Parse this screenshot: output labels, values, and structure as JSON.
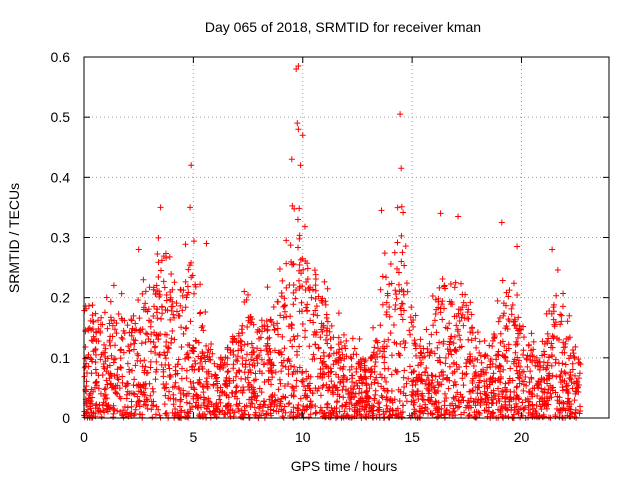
{
  "chart_data": {
    "type": "scatter",
    "title": "Day 065 of 2018, SRMTID for receiver kman",
    "xlabel": "GPS time / hours",
    "ylabel": "SRMTID / TECUs",
    "xlim": [
      0,
      24
    ],
    "ylim": [
      0,
      0.6
    ],
    "xticks": [
      0,
      5,
      10,
      15,
      20
    ],
    "xtick_labels": [
      "0",
      "5",
      "10",
      "15",
      "20"
    ],
    "yticks": [
      0,
      0.1,
      0.2,
      0.3,
      0.4,
      0.5,
      0.6
    ],
    "ytick_labels": [
      "0",
      "0.1",
      "0.2",
      "0.3",
      "0.4",
      "0.5",
      "0.6"
    ],
    "grid": true,
    "marker": "+",
    "series": [
      {
        "name": "SRMTID",
        "color": "#ff0000",
        "description": "Dense cloud of points (several thousand) between 0 and 22.7 h, mostly 0-0.2 TECU, with bursts near 3.5-5 h, 9.5-10 h, 14-15 h, 16-17.5 h, 19-19.5 h and 21.5 h",
        "notable_points": [
          {
            "x": 9.7,
            "y": 0.58
          },
          {
            "x": 9.8,
            "y": 0.585
          },
          {
            "x": 9.75,
            "y": 0.49
          },
          {
            "x": 9.8,
            "y": 0.48
          },
          {
            "x": 10.0,
            "y": 0.47
          },
          {
            "x": 14.45,
            "y": 0.505
          },
          {
            "x": 4.9,
            "y": 0.42
          },
          {
            "x": 9.5,
            "y": 0.43
          },
          {
            "x": 9.9,
            "y": 0.42
          },
          {
            "x": 14.5,
            "y": 0.415
          },
          {
            "x": 3.5,
            "y": 0.35
          },
          {
            "x": 4.85,
            "y": 0.35
          },
          {
            "x": 13.6,
            "y": 0.345
          },
          {
            "x": 16.3,
            "y": 0.34
          },
          {
            "x": 17.1,
            "y": 0.335
          },
          {
            "x": 19.1,
            "y": 0.325
          },
          {
            "x": 5.6,
            "y": 0.29
          },
          {
            "x": 21.4,
            "y": 0.28
          },
          {
            "x": 2.5,
            "y": 0.28
          },
          {
            "x": 19.8,
            "y": 0.285
          }
        ]
      }
    ]
  }
}
